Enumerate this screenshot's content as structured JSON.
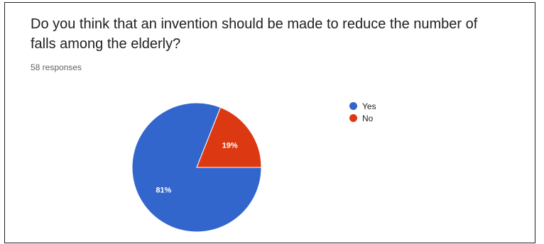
{
  "question": {
    "text": "Do you think that an invention should be made to reduce the number of falls among the elderly?",
    "responses": "58 responses"
  },
  "chart_data": {
    "type": "pie",
    "slices": [
      {
        "name": "Yes",
        "value": 81,
        "label": "81%",
        "color": "#3366cc"
      },
      {
        "name": "No",
        "value": 19,
        "label": "19%",
        "color": "#dc3912"
      }
    ],
    "legend_position": "right"
  }
}
